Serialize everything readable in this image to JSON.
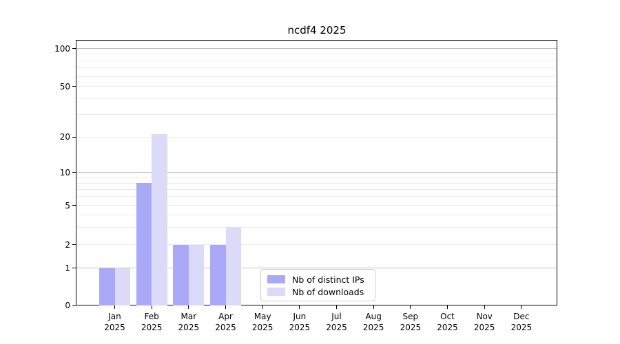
{
  "chart_data": {
    "type": "bar",
    "title": "ncdf4 2025",
    "categories": [
      "Jan",
      "Feb",
      "Mar",
      "Apr",
      "May",
      "Jun",
      "Jul",
      "Aug",
      "Sep",
      "Oct",
      "Nov",
      "Dec"
    ],
    "x_year_label": "2025",
    "series": [
      {
        "name": "Nb of distinct IPs",
        "color": "#a9a9f7",
        "values": [
          1,
          8,
          2,
          2,
          0,
          0,
          0,
          0,
          0,
          0,
          0,
          0
        ]
      },
      {
        "name": "Nb of downloads",
        "color": "#dbdbf9",
        "values": [
          1,
          21,
          2,
          3,
          0,
          0,
          0,
          0,
          0,
          0,
          0,
          0
        ]
      }
    ],
    "y_axis": {
      "scale": "symlog",
      "tick_labels": [
        "0",
        "1",
        "2",
        "5",
        "10",
        "20",
        "50",
        "100"
      ],
      "major_grid_values": [
        1,
        10,
        100
      ],
      "minor_grid_values": [
        2,
        3,
        4,
        5,
        6,
        7,
        8,
        9,
        20,
        30,
        40,
        50,
        60,
        70,
        80,
        90
      ],
      "ylim": [
        0,
        115
      ]
    },
    "legend": {
      "position": "lower center",
      "entries": [
        "Nb of distinct IPs",
        "Nb of downloads"
      ]
    },
    "grid": true
  },
  "colors": {
    "distinct_ips": "#a9a9f7",
    "downloads": "#dbdbf9",
    "grid_major": "#c2c2c2",
    "grid_minor": "#ebebeb",
    "axis": "#000000"
  }
}
